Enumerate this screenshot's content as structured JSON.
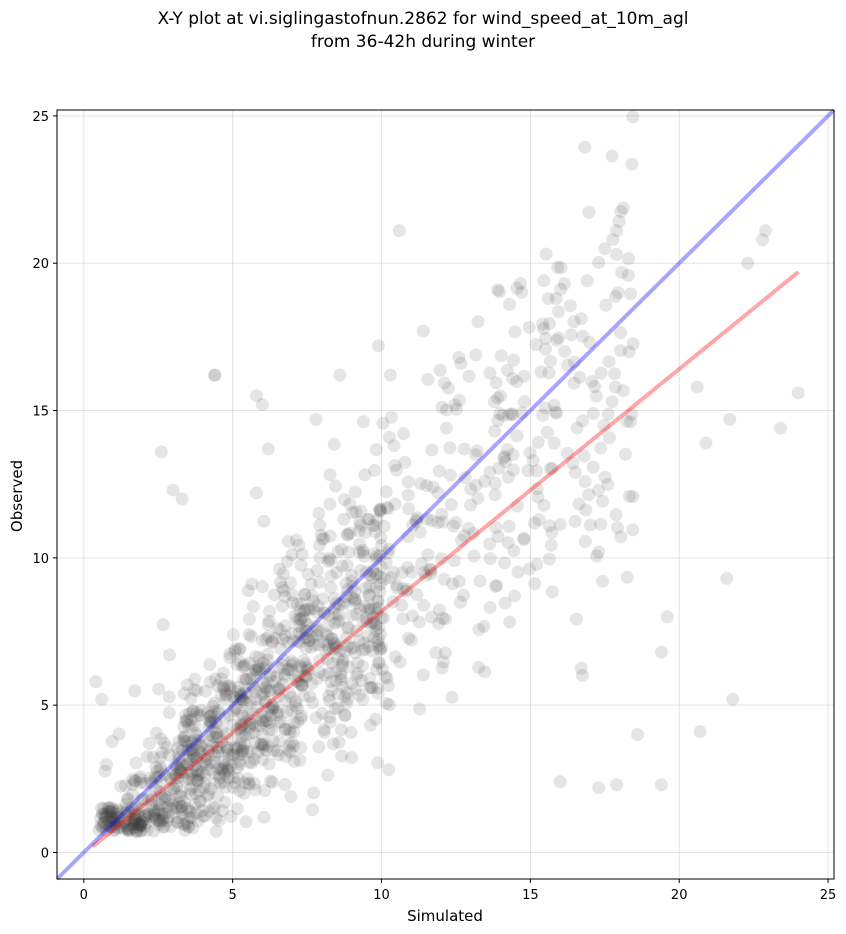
{
  "chart_data": {
    "type": "scatter",
    "title_line1": "X-Y plot at vi.siglingastofnun.2862 for wind_speed_at_10m_agl",
    "title_line2": "from 36-42h during winter",
    "xlabel": "Simulated",
    "ylabel": "Observed",
    "xlim": [
      -0.9,
      25.2
    ],
    "ylim": [
      -0.9,
      25.2
    ],
    "xticks": [
      0,
      5,
      10,
      15,
      20,
      25
    ],
    "yticks": [
      0,
      5,
      10,
      15,
      20,
      25
    ],
    "grid": true,
    "point_color": "#333333",
    "point_opacity": 0.13,
    "lines": [
      {
        "kind": "one-to-one",
        "color": "#0000ff",
        "opacity": 0.35,
        "x": [
          -0.9,
          25.2
        ],
        "y": [
          -0.9,
          25.2
        ]
      },
      {
        "kind": "regression",
        "color": "#ff0000",
        "opacity": 0.35,
        "x": [
          0.3,
          24.0
        ],
        "y": [
          0.2,
          19.7
        ]
      }
    ],
    "outliers": [
      [
        2.6,
        13.6
      ],
      [
        3.0,
        12.3
      ],
      [
        3.3,
        12.0
      ],
      [
        4.4,
        16.2
      ],
      [
        5.8,
        15.5
      ],
      [
        6.0,
        15.2
      ],
      [
        5.8,
        12.2
      ],
      [
        6.2,
        13.7
      ],
      [
        7.8,
        14.7
      ],
      [
        8.6,
        16.2
      ],
      [
        10.6,
        21.1
      ],
      [
        9.9,
        17.2
      ],
      [
        10.3,
        16.2
      ],
      [
        13.9,
        19.1
      ],
      [
        14.3,
        18.6
      ],
      [
        15.6,
        18.8
      ],
      [
        17.9,
        20.3
      ],
      [
        22.3,
        20.0
      ],
      [
        22.8,
        20.8
      ],
      [
        22.9,
        21.1
      ],
      [
        23.4,
        14.4
      ],
      [
        24.0,
        15.6
      ],
      [
        20.7,
        4.1
      ],
      [
        21.8,
        5.2
      ],
      [
        21.6,
        9.3
      ],
      [
        19.4,
        2.3
      ],
      [
        17.9,
        2.3
      ],
      [
        17.3,
        2.2
      ],
      [
        16.0,
        2.4
      ],
      [
        18.6,
        4.0
      ],
      [
        19.4,
        6.8
      ],
      [
        19.6,
        8.0
      ],
      [
        4.4,
        16.2
      ],
      [
        11.4,
        17.7
      ],
      [
        12.6,
        16.8
      ],
      [
        20.6,
        15.8
      ],
      [
        21.7,
        14.7
      ],
      [
        20.9,
        13.9
      ],
      [
        0.4,
        5.8
      ],
      [
        0.6,
        5.2
      ]
    ]
  }
}
